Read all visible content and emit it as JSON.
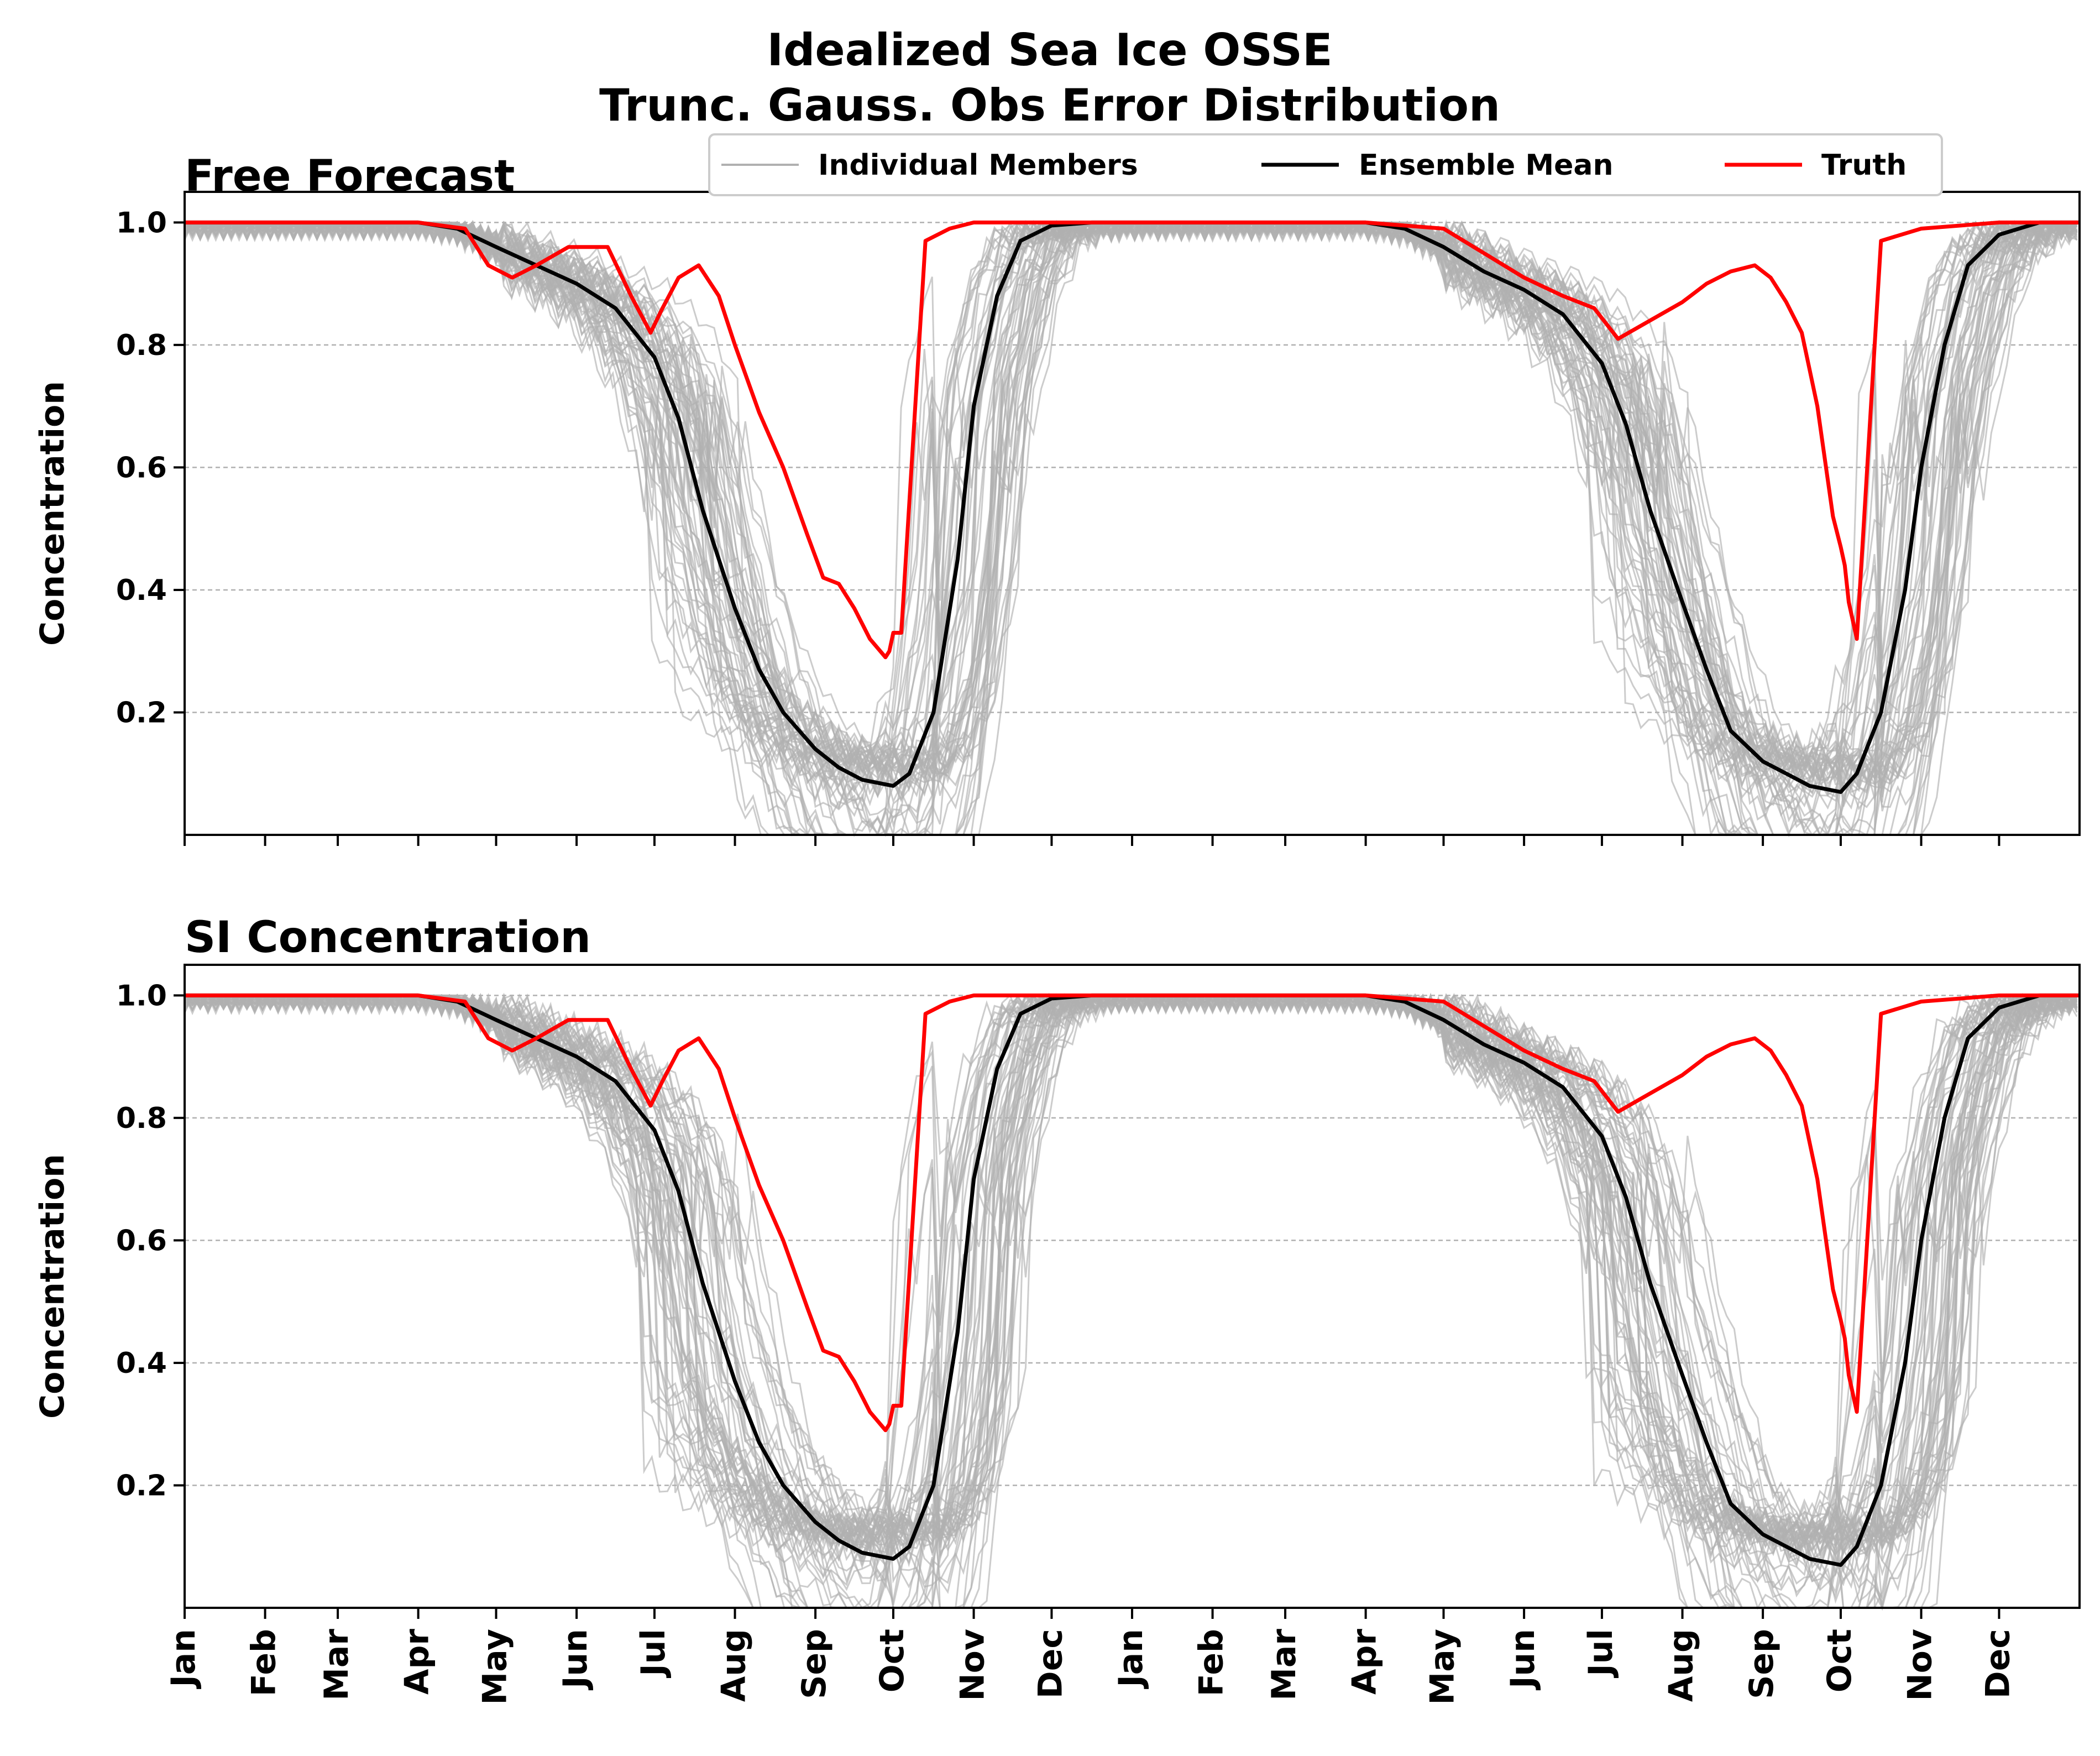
{
  "figure": {
    "title_line1": "Idealized Sea Ice OSSE",
    "title_line2": "Trunc. Gauss. Obs Error Distribution"
  },
  "legend": {
    "members_label": "Individual Members",
    "mean_label": "Ensemble Mean",
    "truth_label": "Truth"
  },
  "colors": {
    "members": "#b0b0b0",
    "mean": "#000000",
    "truth": "#ff0000",
    "grid": "#b0b0b0"
  },
  "chart_data": [
    {
      "type": "line",
      "title": "Free Forecast",
      "ylabel": "Concentration",
      "xlabel": "",
      "ylim": [
        0,
        1.05
      ],
      "yticks": [
        "0.2",
        "0.4",
        "0.6",
        "0.8",
        "1.0"
      ],
      "x_months": [
        "Jan",
        "Feb",
        "Mar",
        "Apr",
        "May",
        "Jun",
        "Jul",
        "Aug",
        "Sep",
        "Oct",
        "Nov",
        "Dec",
        "Jan",
        "Feb",
        "Mar",
        "Apr",
        "May",
        "Jun",
        "Jul",
        "Aug",
        "Sep",
        "Oct",
        "Nov",
        "Dec"
      ],
      "xlim_months": [
        0,
        24
      ],
      "grid_y": true,
      "legend_position": "top-center",
      "series": [
        {
          "name": "Ensemble Mean",
          "x": [
            0,
            2,
            3,
            3.5,
            4,
            4.5,
            5,
            5.5,
            6,
            6.3,
            6.6,
            7,
            7.3,
            7.6,
            8,
            8.3,
            8.6,
            9,
            9.2,
            9.5,
            9.8,
            10,
            10.3,
            10.6,
            11,
            11.5,
            12,
            14,
            15,
            15.5,
            16,
            16.5,
            17,
            17.5,
            18,
            18.3,
            18.6,
            19,
            19.3,
            19.6,
            20,
            20.3,
            20.6,
            21,
            21.2,
            21.5,
            21.8,
            22,
            22.3,
            22.6,
            23,
            23.5,
            24
          ],
          "y": [
            1.0,
            1.0,
            1.0,
            0.99,
            0.96,
            0.93,
            0.9,
            0.86,
            0.78,
            0.68,
            0.53,
            0.37,
            0.27,
            0.2,
            0.14,
            0.11,
            0.09,
            0.08,
            0.1,
            0.2,
            0.45,
            0.7,
            0.88,
            0.97,
            0.995,
            1.0,
            1.0,
            1.0,
            1.0,
            0.99,
            0.96,
            0.92,
            0.89,
            0.85,
            0.77,
            0.67,
            0.53,
            0.38,
            0.27,
            0.17,
            0.12,
            0.1,
            0.08,
            0.07,
            0.1,
            0.2,
            0.4,
            0.6,
            0.8,
            0.93,
            0.98,
            1.0,
            1.0
          ]
        },
        {
          "name": "Truth",
          "x": [
            0,
            3,
            3.6,
            3.9,
            4.2,
            4.5,
            4.9,
            5.4,
            5.7,
            5.95,
            6.1,
            6.3,
            6.55,
            6.8,
            7.0,
            7.3,
            7.6,
            7.9,
            8.1,
            8.3,
            8.5,
            8.7,
            8.9,
            8.95,
            9.0,
            9.1,
            9.4,
            9.7,
            10,
            11,
            12,
            15,
            16,
            16.5,
            17.0,
            17.5,
            17.9,
            18.2,
            18.6,
            19.0,
            19.3,
            19.6,
            19.9,
            20.1,
            20.3,
            20.5,
            20.7,
            20.9,
            21.0,
            21.05,
            21.1,
            21.2,
            21.5,
            22,
            23,
            24
          ],
          "y": [
            1.0,
            1.0,
            0.99,
            0.93,
            0.91,
            0.93,
            0.96,
            0.96,
            0.88,
            0.82,
            0.86,
            0.91,
            0.93,
            0.88,
            0.8,
            0.69,
            0.6,
            0.49,
            0.42,
            0.41,
            0.37,
            0.32,
            0.29,
            0.3,
            0.33,
            0.33,
            0.97,
            0.99,
            1.0,
            1.0,
            1.0,
            1.0,
            0.99,
            0.95,
            0.91,
            0.88,
            0.86,
            0.81,
            0.84,
            0.87,
            0.9,
            0.92,
            0.93,
            0.91,
            0.87,
            0.82,
            0.7,
            0.52,
            0.47,
            0.44,
            0.38,
            0.32,
            0.97,
            0.99,
            1.0,
            1.0
          ]
        }
      ]
    },
    {
      "type": "line",
      "title": "SI Concentration",
      "ylabel": "Concentration",
      "xlabel": "",
      "ylim": [
        0,
        1.05
      ],
      "yticks": [
        "0.2",
        "0.4",
        "0.6",
        "0.8",
        "1.0"
      ],
      "x_months": [
        "Jan",
        "Feb",
        "Mar",
        "Apr",
        "May",
        "Jun",
        "Jul",
        "Aug",
        "Sep",
        "Oct",
        "Nov",
        "Dec",
        "Jan",
        "Feb",
        "Mar",
        "Apr",
        "May",
        "Jun",
        "Jul",
        "Aug",
        "Sep",
        "Oct",
        "Nov",
        "Dec"
      ],
      "xlim_months": [
        0,
        24
      ],
      "grid_y": true,
      "series": [
        {
          "name": "Ensemble Mean",
          "x": [
            0,
            2,
            3,
            3.5,
            4,
            4.5,
            5,
            5.5,
            6,
            6.3,
            6.6,
            7,
            7.3,
            7.6,
            8,
            8.3,
            8.6,
            9,
            9.2,
            9.5,
            9.8,
            10,
            10.3,
            10.6,
            11,
            11.5,
            12,
            14,
            15,
            15.5,
            16,
            16.5,
            17,
            17.5,
            18,
            18.3,
            18.6,
            19,
            19.3,
            19.6,
            20,
            20.3,
            20.6,
            21,
            21.2,
            21.5,
            21.8,
            22,
            22.3,
            22.6,
            23,
            23.5,
            24
          ],
          "y": [
            1.0,
            1.0,
            1.0,
            0.99,
            0.96,
            0.93,
            0.9,
            0.86,
            0.78,
            0.68,
            0.53,
            0.37,
            0.27,
            0.2,
            0.14,
            0.11,
            0.09,
            0.08,
            0.1,
            0.2,
            0.45,
            0.7,
            0.88,
            0.97,
            0.995,
            1.0,
            1.0,
            1.0,
            1.0,
            0.99,
            0.96,
            0.92,
            0.89,
            0.85,
            0.77,
            0.67,
            0.53,
            0.38,
            0.27,
            0.17,
            0.12,
            0.1,
            0.08,
            0.07,
            0.1,
            0.2,
            0.4,
            0.6,
            0.8,
            0.93,
            0.98,
            1.0,
            1.0
          ]
        },
        {
          "name": "Truth",
          "x": [
            0,
            3,
            3.6,
            3.9,
            4.2,
            4.5,
            4.9,
            5.4,
            5.7,
            5.95,
            6.1,
            6.3,
            6.55,
            6.8,
            7.0,
            7.3,
            7.6,
            7.9,
            8.1,
            8.3,
            8.5,
            8.7,
            8.9,
            8.95,
            9.0,
            9.1,
            9.4,
            9.7,
            10,
            11,
            12,
            15,
            16,
            16.5,
            17.0,
            17.5,
            17.9,
            18.2,
            18.6,
            19.0,
            19.3,
            19.6,
            19.9,
            20.1,
            20.3,
            20.5,
            20.7,
            20.9,
            21.0,
            21.05,
            21.1,
            21.2,
            21.5,
            22,
            23,
            24
          ],
          "y": [
            1.0,
            1.0,
            0.99,
            0.93,
            0.91,
            0.93,
            0.96,
            0.96,
            0.88,
            0.82,
            0.86,
            0.91,
            0.93,
            0.88,
            0.8,
            0.69,
            0.6,
            0.49,
            0.42,
            0.41,
            0.37,
            0.32,
            0.29,
            0.3,
            0.33,
            0.33,
            0.97,
            0.99,
            1.0,
            1.0,
            1.0,
            1.0,
            0.99,
            0.95,
            0.91,
            0.88,
            0.86,
            0.81,
            0.84,
            0.87,
            0.9,
            0.92,
            0.93,
            0.91,
            0.87,
            0.82,
            0.7,
            0.52,
            0.47,
            0.44,
            0.38,
            0.32,
            0.97,
            0.99,
            1.0,
            1.0
          ]
        }
      ]
    }
  ]
}
